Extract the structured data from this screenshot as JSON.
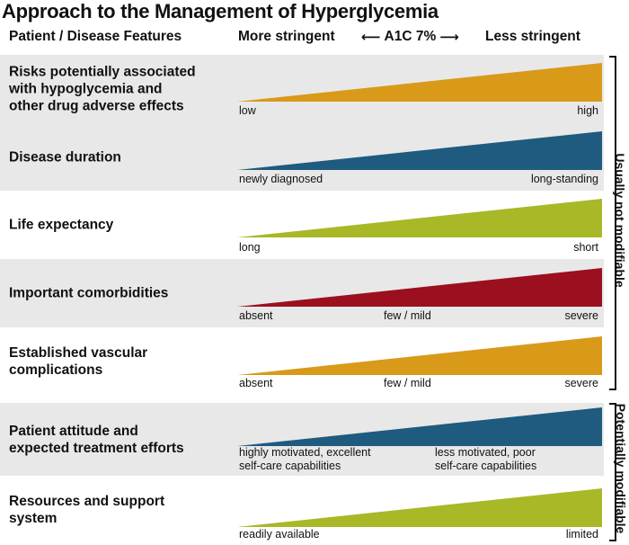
{
  "title": "Approach to the Management of Hyperglycemia",
  "header": {
    "left": "Patient / Disease Features",
    "more": "More stringent",
    "arrow_left": "⟵",
    "a1c": "A1C 7%",
    "arrow_right": "⟶",
    "less": "Less stringent"
  },
  "colors": {
    "orange": "#D99A1A",
    "blue": "#1E5B7E",
    "green": "#A8B827",
    "red": "#9B0F1F"
  },
  "rows": [
    {
      "label_lines": [
        "Risks potentially associated",
        "with hypoglycemia and",
        "other drug adverse effects"
      ],
      "color": "#D99A1A",
      "ticks": [
        {
          "lines": [
            "low"
          ]
        },
        {
          "lines": [
            "high"
          ]
        }
      ]
    },
    {
      "label_lines": [
        "Disease duration"
      ],
      "color": "#1E5B7E",
      "ticks": [
        {
          "lines": [
            "newly diagnosed"
          ]
        },
        {
          "lines": [
            "long-standing"
          ]
        }
      ]
    },
    {
      "label_lines": [
        "Life expectancy"
      ],
      "color": "#A8B827",
      "ticks": [
        {
          "lines": [
            "long"
          ]
        },
        {
          "lines": [
            "short"
          ]
        }
      ]
    },
    {
      "label_lines": [
        "Important comorbidities"
      ],
      "color": "#9B0F1F",
      "ticks": [
        {
          "lines": [
            "absent"
          ]
        },
        {
          "lines": [
            "few / mild"
          ]
        },
        {
          "lines": [
            "severe"
          ]
        }
      ]
    },
    {
      "label_lines": [
        "Established vascular",
        "complications"
      ],
      "color": "#D99A1A",
      "ticks": [
        {
          "lines": [
            "absent"
          ]
        },
        {
          "lines": [
            "few / mild"
          ]
        },
        {
          "lines": [
            "severe"
          ]
        }
      ]
    },
    {
      "label_lines": [
        "Patient attitude and",
        "expected treatment efforts"
      ],
      "color": "#1E5B7E",
      "ticks": [
        {
          "lines": [
            "highly motivated, excellent",
            "self-care capabilities"
          ]
        },
        {
          "lines": [
            "less motivated, poor",
            "self-care capabilities"
          ]
        }
      ]
    },
    {
      "label_lines": [
        "Resources and support",
        "system"
      ],
      "color": "#A8B827",
      "ticks": [
        {
          "lines": [
            "readily available"
          ]
        },
        {
          "lines": [
            "limited"
          ]
        }
      ]
    }
  ],
  "side_labels": {
    "not_modifiable": "Usually not modifiable",
    "modifiable": "Potentially modifiable"
  }
}
